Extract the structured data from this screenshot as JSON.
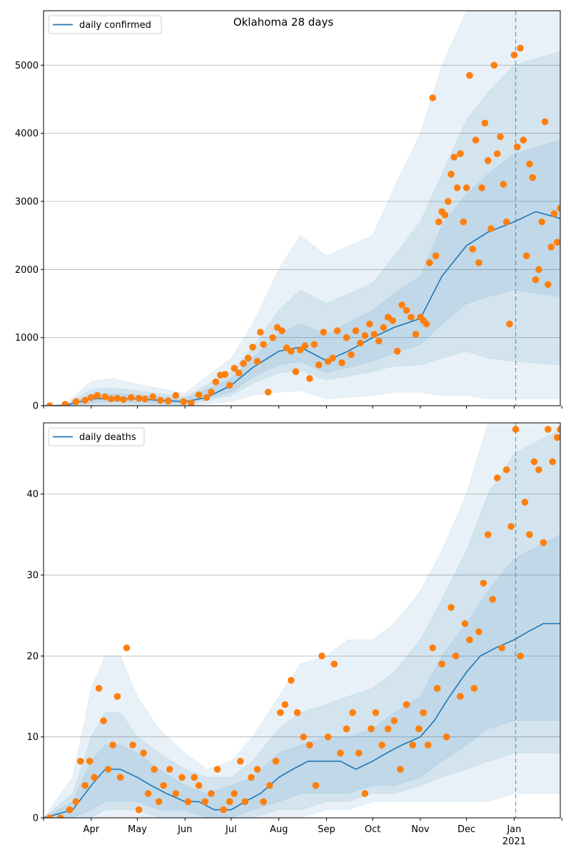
{
  "figure": {
    "title": "Oklahoma 28 days"
  },
  "colors": {
    "line": "#1f77b4",
    "dots": "#ff7f0e",
    "band": "#1f77b4",
    "grid": "#b0b0b0",
    "vline": "#1f77b4"
  },
  "x_ticks": {
    "month_labels": [
      "Apr",
      "May",
      "Jun",
      "Jul",
      "Aug",
      "Sep",
      "Oct",
      "Nov",
      "Dec",
      "Jan"
    ],
    "year_label": "2021"
  },
  "chart_data": [
    {
      "type": "line",
      "legend": "daily confirmed",
      "legend_position": "top-left",
      "grid": true,
      "x_range": [
        "2020-03-01",
        "2021-01-31"
      ],
      "ylim": [
        0,
        5800
      ],
      "yticks": [
        0,
        1000,
        2000,
        3000,
        4000,
        5000
      ],
      "forecast_start": "2021-01-02",
      "line": {
        "name": "daily confirmed",
        "x": [
          "2020-03-01",
          "2020-03-15",
          "2020-04-01",
          "2020-04-15",
          "2020-05-01",
          "2020-05-15",
          "2020-06-01",
          "2020-06-15",
          "2020-07-01",
          "2020-07-15",
          "2020-08-01",
          "2020-08-15",
          "2020-09-01",
          "2020-09-15",
          "2020-10-01",
          "2020-10-15",
          "2020-11-01",
          "2020-11-15",
          "2020-12-01",
          "2020-12-15",
          "2021-01-01",
          "2021-01-15",
          "2021-01-31"
        ],
        "y": [
          0,
          5,
          100,
          110,
          100,
          80,
          60,
          120,
          300,
          560,
          800,
          860,
          660,
          800,
          1000,
          1150,
          1280,
          1900,
          2350,
          2550,
          2700,
          2850,
          2750
        ]
      },
      "bands": [
        {
          "level": "outer",
          "x": [
            "2020-03-01",
            "2020-03-15",
            "2020-04-01",
            "2020-04-15",
            "2020-05-01",
            "2020-06-01",
            "2020-07-01",
            "2020-07-15",
            "2020-08-01",
            "2020-08-15",
            "2020-09-01",
            "2020-10-01",
            "2020-10-15",
            "2020-11-01",
            "2020-11-15",
            "2020-12-01",
            "2020-12-15",
            "2021-01-01",
            "2021-01-31"
          ],
          "lower": [
            0,
            0,
            0,
            0,
            0,
            0,
            60,
            150,
            200,
            220,
            100,
            150,
            200,
            200,
            150,
            150,
            100,
            100,
            100
          ],
          "upper": [
            0,
            20,
            360,
            400,
            320,
            180,
            700,
            1200,
            2000,
            2500,
            2200,
            2500,
            3200,
            4000,
            5000,
            5800,
            5800,
            5800,
            5800
          ]
        },
        {
          "level": "middle",
          "x": [
            "2020-03-01",
            "2020-03-15",
            "2020-04-01",
            "2020-04-15",
            "2020-05-01",
            "2020-06-01",
            "2020-07-01",
            "2020-07-15",
            "2020-08-01",
            "2020-08-15",
            "2020-09-01",
            "2020-10-01",
            "2020-10-15",
            "2020-11-01",
            "2020-11-15",
            "2020-12-01",
            "2020-12-15",
            "2021-01-01",
            "2021-01-31"
          ],
          "lower": [
            0,
            0,
            20,
            30,
            20,
            10,
            150,
            330,
            480,
            520,
            380,
            500,
            580,
            600,
            700,
            800,
            700,
            650,
            600
          ],
          "upper": [
            0,
            10,
            240,
            260,
            220,
            130,
            500,
            850,
            1400,
            1700,
            1500,
            1800,
            2200,
            2700,
            3400,
            4200,
            4600,
            5000,
            5200
          ]
        },
        {
          "level": "inner",
          "x": [
            "2020-03-01",
            "2020-03-15",
            "2020-04-01",
            "2020-04-15",
            "2020-05-01",
            "2020-06-01",
            "2020-07-01",
            "2020-07-15",
            "2020-08-01",
            "2020-08-15",
            "2020-09-01",
            "2020-10-01",
            "2020-10-15",
            "2020-11-01",
            "2020-11-15",
            "2020-12-01",
            "2020-12-15",
            "2021-01-01",
            "2021-01-31"
          ],
          "lower": [
            0,
            0,
            50,
            60,
            50,
            30,
            200,
            420,
            600,
            650,
            480,
            650,
            780,
            900,
            1200,
            1500,
            1600,
            1700,
            1600
          ],
          "upper": [
            0,
            8,
            170,
            180,
            160,
            100,
            400,
            700,
            1050,
            1200,
            1050,
            1400,
            1650,
            1900,
            2650,
            3100,
            3400,
            3700,
            3900
          ]
        }
      ],
      "dots": {
        "x": [
          "2020-03-05",
          "2020-03-15",
          "2020-03-22",
          "2020-03-28",
          "2020-04-01",
          "2020-04-05",
          "2020-04-10",
          "2020-04-14",
          "2020-04-18",
          "2020-04-22",
          "2020-04-27",
          "2020-05-02",
          "2020-05-06",
          "2020-05-11",
          "2020-05-16",
          "2020-05-21",
          "2020-05-26",
          "2020-05-31",
          "2020-06-05",
          "2020-06-10",
          "2020-06-15",
          "2020-06-18",
          "2020-06-21",
          "2020-06-24",
          "2020-06-27",
          "2020-06-30",
          "2020-07-03",
          "2020-07-06",
          "2020-07-09",
          "2020-07-12",
          "2020-07-15",
          "2020-07-18",
          "2020-07-20",
          "2020-07-22",
          "2020-07-25",
          "2020-07-28",
          "2020-07-31",
          "2020-08-03",
          "2020-08-06",
          "2020-08-09",
          "2020-08-12",
          "2020-08-15",
          "2020-08-18",
          "2020-08-21",
          "2020-08-24",
          "2020-08-27",
          "2020-08-30",
          "2020-09-02",
          "2020-09-05",
          "2020-09-08",
          "2020-09-11",
          "2020-09-14",
          "2020-09-17",
          "2020-09-20",
          "2020-09-23",
          "2020-09-26",
          "2020-09-29",
          "2020-10-02",
          "2020-10-05",
          "2020-10-08",
          "2020-10-11",
          "2020-10-14",
          "2020-10-17",
          "2020-10-20",
          "2020-10-23",
          "2020-10-26",
          "2020-10-29",
          "2020-11-01",
          "2020-11-03",
          "2020-11-05",
          "2020-11-07",
          "2020-11-09",
          "2020-11-11",
          "2020-11-13",
          "2020-11-15",
          "2020-11-17",
          "2020-11-19",
          "2020-11-21",
          "2020-11-23",
          "2020-11-25",
          "2020-11-27",
          "2020-11-29",
          "2020-12-01",
          "2020-12-03",
          "2020-12-05",
          "2020-12-07",
          "2020-12-09",
          "2020-12-11",
          "2020-12-13",
          "2020-12-15",
          "2020-12-17",
          "2020-12-19",
          "2020-12-21",
          "2020-12-23",
          "2020-12-25",
          "2020-12-27",
          "2020-12-29",
          "2021-01-01",
          "2021-01-03",
          "2021-01-05",
          "2021-01-07",
          "2021-01-09",
          "2021-01-11",
          "2021-01-13",
          "2021-01-15",
          "2021-01-17",
          "2021-01-19",
          "2021-01-21",
          "2021-01-23",
          "2021-01-25",
          "2021-01-27",
          "2021-01-29",
          "2021-01-31"
        ],
        "y": [
          0,
          20,
          60,
          80,
          120,
          150,
          130,
          100,
          110,
          90,
          120,
          110,
          100,
          130,
          80,
          70,
          150,
          60,
          40,
          160,
          120,
          200,
          350,
          450,
          460,
          300,
          550,
          480,
          620,
          700,
          860,
          650,
          1080,
          900,
          200,
          1000,
          1150,
          1100,
          850,
          800,
          500,
          820,
          880,
          400,
          900,
          600,
          1080,
          650,
          700,
          1100,
          630,
          1000,
          750,
          1100,
          920,
          1030,
          1200,
          1050,
          950,
          1150,
          1300,
          1250,
          800,
          1480,
          1400,
          1300,
          1050,
          1300,
          1250,
          1200,
          2100,
          4520,
          2200,
          2700,
          2850,
          2800,
          3000,
          3400,
          3650,
          3200,
          3700,
          2700,
          3200,
          4850,
          2300,
          3900,
          2100,
          3200,
          4150,
          3600,
          2600,
          5000,
          3700,
          3950,
          3250,
          2700,
          1200,
          5150,
          3800,
          5250,
          3900,
          2200,
          3550,
          3350,
          1850,
          2000,
          2700,
          4170,
          1780,
          2330,
          2820,
          2400,
          2900
        ]
      }
    },
    {
      "type": "line",
      "legend": "daily deaths",
      "legend_position": "top-left",
      "grid": true,
      "x_range": [
        "2020-03-01",
        "2021-01-31"
      ],
      "ylim": [
        0,
        48.8
      ],
      "yticks": [
        0,
        10,
        20,
        30,
        40
      ],
      "forecast_start": "2021-01-02",
      "line": {
        "name": "daily deaths",
        "x": [
          "2020-03-01",
          "2020-03-20",
          "2020-04-01",
          "2020-04-10",
          "2020-04-20",
          "2020-05-01",
          "2020-05-10",
          "2020-05-20",
          "2020-06-01",
          "2020-06-10",
          "2020-06-20",
          "2020-07-01",
          "2020-07-10",
          "2020-07-20",
          "2020-08-01",
          "2020-08-10",
          "2020-08-20",
          "2020-09-01",
          "2020-09-10",
          "2020-09-20",
          "2020-10-01",
          "2020-10-10",
          "2020-10-20",
          "2020-11-01",
          "2020-11-10",
          "2020-11-20",
          "2020-12-01",
          "2020-12-10",
          "2020-12-20",
          "2021-01-01",
          "2021-01-10",
          "2021-01-20",
          "2021-01-31"
        ],
        "y": [
          0,
          1,
          4,
          6,
          6,
          5,
          4,
          3,
          2,
          2,
          1,
          1,
          2,
          3,
          5,
          6,
          7,
          7,
          7,
          6,
          7,
          8,
          9,
          10,
          12,
          15,
          18,
          20,
          21,
          22,
          23,
          24,
          24
        ]
      },
      "bands": [
        {
          "level": "outer",
          "x": [
            "2020-03-01",
            "2020-03-20",
            "2020-04-01",
            "2020-04-10",
            "2020-04-20",
            "2020-05-01",
            "2020-05-15",
            "2020-06-01",
            "2020-06-15",
            "2020-07-01",
            "2020-07-15",
            "2020-08-01",
            "2020-08-15",
            "2020-09-01",
            "2020-09-15",
            "2020-10-01",
            "2020-10-15",
            "2020-11-01",
            "2020-11-15",
            "2020-12-01",
            "2020-12-15",
            "2021-01-01",
            "2021-01-31"
          ],
          "lower": [
            0,
            0,
            0,
            0,
            0,
            0,
            0,
            0,
            0,
            0,
            0,
            0,
            0,
            1,
            1,
            2,
            2,
            2,
            2,
            2,
            2,
            3,
            3
          ],
          "upper": [
            0,
            5,
            16,
            20,
            20,
            15,
            11,
            8,
            6,
            7,
            10,
            15,
            19,
            20,
            22,
            22,
            24,
            28,
            33,
            40,
            48.8,
            48.8,
            48.8
          ]
        },
        {
          "level": "middle",
          "x": [
            "2020-03-01",
            "2020-03-20",
            "2020-04-01",
            "2020-04-10",
            "2020-04-20",
            "2020-05-01",
            "2020-05-15",
            "2020-06-01",
            "2020-06-15",
            "2020-07-01",
            "2020-07-15",
            "2020-08-01",
            "2020-08-15",
            "2020-09-01",
            "2020-09-15",
            "2020-10-01",
            "2020-10-15",
            "2020-11-01",
            "2020-11-15",
            "2020-12-01",
            "2020-12-15",
            "2021-01-01",
            "2021-01-31"
          ],
          "lower": [
            0,
            0,
            0,
            1,
            1,
            1,
            0,
            0,
            0,
            0,
            0,
            1,
            1,
            2,
            2,
            3,
            3,
            4,
            5,
            6,
            7,
            8,
            8
          ],
          "upper": [
            0,
            3,
            10,
            13,
            13,
            10,
            8,
            6,
            5,
            5,
            7,
            11,
            13,
            14,
            15,
            16,
            18,
            22,
            27,
            33,
            40,
            45,
            48
          ]
        },
        {
          "level": "inner",
          "x": [
            "2020-03-01",
            "2020-03-20",
            "2020-04-01",
            "2020-04-10",
            "2020-04-20",
            "2020-05-01",
            "2020-05-15",
            "2020-06-01",
            "2020-06-15",
            "2020-07-01",
            "2020-07-15",
            "2020-08-01",
            "2020-08-15",
            "2020-09-01",
            "2020-09-15",
            "2020-10-01",
            "2020-10-15",
            "2020-11-01",
            "2020-11-15",
            "2020-12-01",
            "2020-12-15",
            "2021-01-01",
            "2021-01-31"
          ],
          "lower": [
            0,
            0,
            1,
            2,
            2,
            2,
            1,
            1,
            0,
            0,
            1,
            2,
            3,
            3,
            3,
            4,
            4,
            5,
            7,
            9,
            11,
            12,
            12
          ],
          "upper": [
            0,
            2,
            7,
            9,
            9,
            8,
            6,
            4,
            3,
            4,
            5,
            8,
            9,
            10,
            10,
            11,
            13,
            15,
            20,
            24,
            28,
            32,
            35
          ]
        }
      ],
      "dots": {
        "x": [
          "2020-03-05",
          "2020-03-12",
          "2020-03-18",
          "2020-03-22",
          "2020-03-25",
          "2020-03-28",
          "2020-03-31",
          "2020-04-03",
          "2020-04-06",
          "2020-04-09",
          "2020-04-12",
          "2020-04-15",
          "2020-04-18",
          "2020-04-20",
          "2020-04-24",
          "2020-04-28",
          "2020-05-02",
          "2020-05-05",
          "2020-05-08",
          "2020-05-12",
          "2020-05-15",
          "2020-05-18",
          "2020-05-22",
          "2020-05-26",
          "2020-05-30",
          "2020-06-03",
          "2020-06-07",
          "2020-06-10",
          "2020-06-14",
          "2020-06-18",
          "2020-06-22",
          "2020-06-26",
          "2020-06-30",
          "2020-07-03",
          "2020-07-07",
          "2020-07-10",
          "2020-07-14",
          "2020-07-18",
          "2020-07-22",
          "2020-07-26",
          "2020-07-30",
          "2020-08-02",
          "2020-08-05",
          "2020-08-09",
          "2020-08-13",
          "2020-08-17",
          "2020-08-21",
          "2020-08-25",
          "2020-08-29",
          "2020-09-02",
          "2020-09-06",
          "2020-09-10",
          "2020-09-14",
          "2020-09-18",
          "2020-09-22",
          "2020-09-26",
          "2020-09-30",
          "2020-10-03",
          "2020-10-07",
          "2020-10-11",
          "2020-10-15",
          "2020-10-19",
          "2020-10-23",
          "2020-10-27",
          "2020-10-31",
          "2020-11-03",
          "2020-11-06",
          "2020-11-09",
          "2020-11-12",
          "2020-11-15",
          "2020-11-18",
          "2020-11-21",
          "2020-11-24",
          "2020-11-27",
          "2020-11-30",
          "2020-12-03",
          "2020-12-06",
          "2020-12-09",
          "2020-12-12",
          "2020-12-15",
          "2020-12-18",
          "2020-12-21",
          "2020-12-24",
          "2020-12-27",
          "2020-12-30",
          "2021-01-02",
          "2021-01-05",
          "2021-01-08",
          "2021-01-11",
          "2021-01-14",
          "2021-01-17",
          "2021-01-20",
          "2021-01-23",
          "2021-01-26",
          "2021-01-29",
          "2021-01-31"
        ],
        "y": [
          0,
          0,
          1,
          2,
          7,
          4,
          7,
          5,
          16,
          12,
          6,
          9,
          15,
          5,
          21,
          9,
          1,
          8,
          3,
          6,
          2,
          4,
          6,
          3,
          5,
          2,
          5,
          4,
          2,
          3,
          6,
          1,
          2,
          3,
          7,
          2,
          5,
          6,
          2,
          4,
          7,
          13,
          14,
          17,
          13,
          10,
          9,
          4,
          20,
          10,
          19,
          8,
          11,
          13,
          8,
          3,
          11,
          13,
          9,
          11,
          12,
          6,
          14,
          9,
          11,
          13,
          9,
          21,
          16,
          19,
          10,
          26,
          20,
          15,
          24,
          22,
          16,
          23,
          29,
          35,
          27,
          42,
          21,
          43,
          36,
          48,
          20,
          39,
          35,
          44,
          43,
          34,
          48,
          44,
          47,
          48
        ]
      }
    }
  ]
}
